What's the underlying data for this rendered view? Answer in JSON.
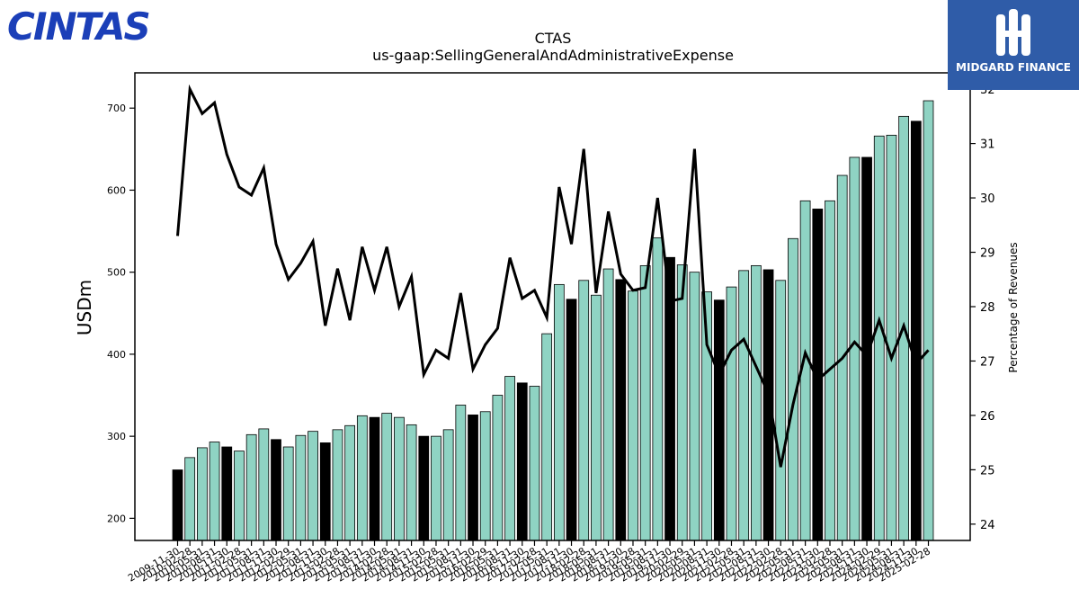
{
  "header": {
    "company_logo_text": "CINTAS",
    "publisher_logo_text": "MIDGARD FINANCE"
  },
  "colors": {
    "bar_teal": "#8fd3c3",
    "bar_black": "#000000",
    "line": "#000000",
    "logo_blue": "#1b3fb8",
    "publisher_blue": "#2f5ca8"
  },
  "chart_data": {
    "type": "bar",
    "title": "CTAS",
    "subtitle": "us-gaap:SellingGeneralAndAdministrativeExpense",
    "ylabel": "USDm",
    "y2label": "Percentage of Revenues",
    "ylim": [
      173,
      743
    ],
    "y2lim": [
      23.7,
      32.3
    ],
    "yticks": [
      200,
      300,
      400,
      500,
      600,
      700
    ],
    "y2ticks": [
      24,
      25,
      26,
      27,
      28,
      29,
      30,
      31,
      32
    ],
    "grid": false,
    "legend": "none",
    "xticklabels": [
      "2009-11-30",
      "2010-02-28",
      "2010-05-31",
      "2010-08-31",
      "2010-11-30",
      "2011-02-28",
      "2011-05-31",
      "2011-08-31",
      "2011-11-30",
      "2012-02-29",
      "2012-05-31",
      "2012-08-31",
      "2012-11-30",
      "2013-02-28",
      "2013-05-31",
      "2013-08-31",
      "2013-11-30",
      "2014-02-28",
      "2014-05-31",
      "2014-08-31",
      "2014-11-30",
      "2015-02-28",
      "2015-05-31",
      "2015-08-31",
      "2015-11-30",
      "2016-02-29",
      "2016-05-31",
      "2016-08-31",
      "2016-11-30",
      "2017-02-28",
      "2017-05-31",
      "2017-08-31",
      "2017-11-30",
      "2018-02-28",
      "2018-05-31",
      "2018-08-31",
      "2018-11-30",
      "2019-02-28",
      "2019-05-31",
      "2019-08-31",
      "2019-11-30",
      "2020-02-29",
      "2020-05-31",
      "2020-08-31",
      "2020-11-30",
      "2021-02-28",
      "2021-05-31",
      "2021-08-31",
      "2021-11-30",
      "2022-02-28",
      "2022-05-31",
      "2022-08-31",
      "2022-11-30",
      "2023-02-28",
      "2023-05-31",
      "2023-08-31",
      "2023-11-30",
      "2024-02-29",
      "2024-05-31",
      "2024-08-31",
      "2024-11-30",
      "2025-02-28"
    ],
    "series": [
      {
        "axis": "left",
        "kind": "bar",
        "values": [
          259,
          274,
          286,
          293,
          287,
          282,
          302,
          309,
          296,
          287,
          301,
          306,
          292,
          308,
          313,
          325,
          323,
          328,
          323,
          314,
          300,
          300,
          308,
          338,
          326,
          330,
          350,
          373,
          365,
          361,
          425,
          485,
          467,
          490,
          472,
          504,
          491,
          477,
          508,
          542,
          518,
          509,
          500,
          476,
          466,
          482,
          502,
          508,
          503,
          490,
          541,
          587,
          577,
          587,
          618,
          640,
          640,
          666,
          667,
          690,
          684,
          709
        ],
        "highlight": [
          true,
          false,
          false,
          false,
          true,
          false,
          false,
          false,
          true,
          false,
          false,
          false,
          true,
          false,
          false,
          false,
          true,
          false,
          false,
          false,
          true,
          false,
          false,
          false,
          true,
          false,
          false,
          false,
          true,
          false,
          false,
          false,
          true,
          false,
          false,
          false,
          true,
          false,
          false,
          false,
          true,
          false,
          false,
          false,
          true,
          false,
          false,
          false,
          true,
          false,
          false,
          false,
          true,
          false,
          false,
          false,
          true,
          false,
          false,
          false,
          true,
          false
        ]
      },
      {
        "axis": "right",
        "kind": "line",
        "values": [
          29.3,
          32.0,
          31.55,
          31.75,
          30.8,
          30.2,
          30.05,
          30.55,
          29.15,
          28.5,
          28.8,
          29.2,
          27.65,
          28.7,
          27.75,
          29.1,
          28.3,
          29.1,
          28.0,
          28.55,
          26.75,
          27.2,
          27.05,
          28.25,
          26.85,
          27.3,
          27.6,
          28.9,
          28.15,
          28.3,
          27.8,
          30.2,
          29.15,
          30.9,
          28.25,
          29.75,
          28.6,
          28.3,
          28.35,
          30.0,
          28.1,
          28.15,
          30.9,
          27.3,
          26.75,
          27.2,
          27.4,
          26.9,
          26.4,
          25.05,
          26.2,
          27.15,
          26.65,
          26.85,
          27.05,
          27.35,
          27.1,
          27.75,
          27.05,
          27.65,
          26.95,
          27.2
        ]
      }
    ]
  }
}
